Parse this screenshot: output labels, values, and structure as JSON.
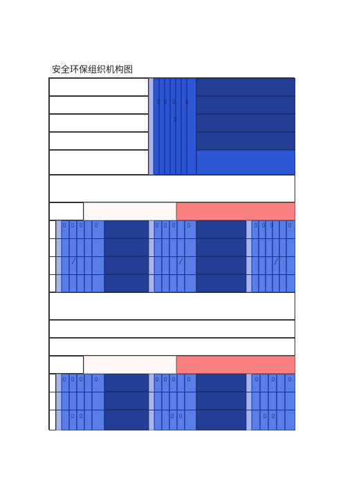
{
  "document": {
    "title": "安全环保组织机构图"
  },
  "colors": {
    "navy": "#233f96",
    "blue": "#2d56d4",
    "lavender": "#a7b5ec",
    "pink": "#f88080",
    "cream": "#fff7f3"
  }
}
